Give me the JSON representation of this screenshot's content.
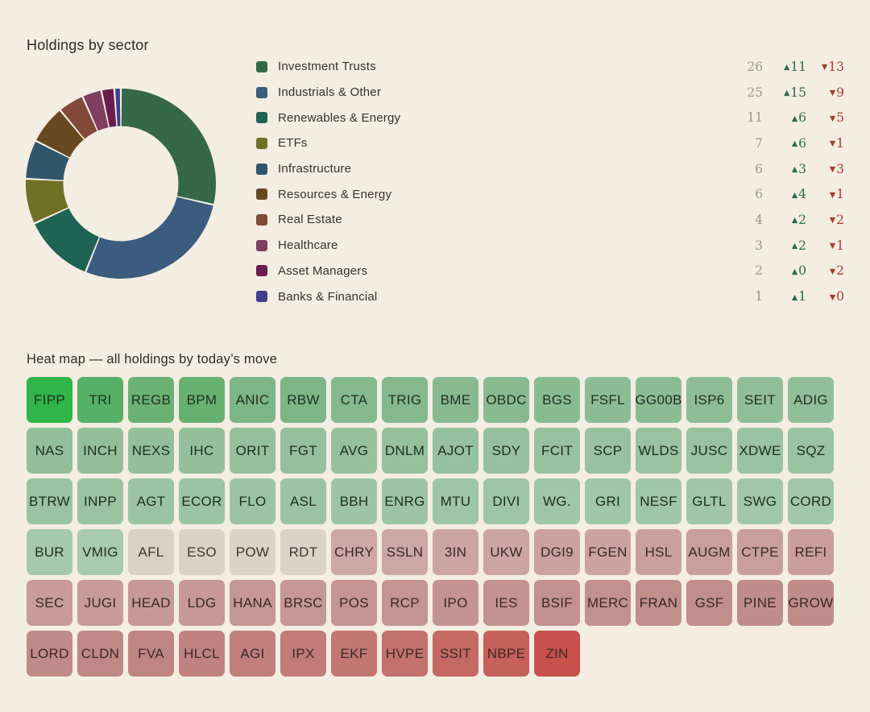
{
  "page": {
    "background": "#f3ede2"
  },
  "icons": {
    "up_triangle": "▲",
    "down_triangle": "▼"
  },
  "colors": {
    "count_grey": "#9c9889",
    "advance_green": "#2e6a4d",
    "decline_red": "#a63d2b",
    "tile_text_on_green": "#20301f",
    "tile_text_on_red": "#3a2827",
    "tile_text_on_neutral": "#3a372f"
  },
  "chart_data": [
    {
      "type": "pie",
      "donut": true,
      "title": "Holdings by sector",
      "legend_position": "right",
      "categories": [
        "Investment Trusts",
        "Industrials & Other",
        "Renewables & Energy",
        "ETFs",
        "Infrastructure",
        "Resources & Energy",
        "Real Estate",
        "Healthcare",
        "Asset Managers",
        "Banks & Financial"
      ],
      "values": [
        26,
        25,
        11,
        7,
        6,
        6,
        4,
        3,
        2,
        1
      ],
      "advancers": [
        11,
        15,
        6,
        6,
        3,
        4,
        2,
        2,
        0,
        1
      ],
      "decliners": [
        13,
        9,
        5,
        1,
        3,
        1,
        2,
        1,
        2,
        0
      ],
      "colors": [
        "#356749",
        "#3b5c7e",
        "#1e6354",
        "#6f7026",
        "#31566c",
        "#674820",
        "#82493a",
        "#7f3f5f",
        "#6b1c4f",
        "#423d8f"
      ]
    },
    {
      "type": "heatmap",
      "title": "Heat map — all holdings by today’s move",
      "rows": [
        [
          {
            "ticker": "FIPP",
            "color": "#2fb54a"
          },
          {
            "ticker": "TRI",
            "color": "#55b167"
          },
          {
            "ticker": "REGB",
            "color": "#69b273"
          },
          {
            "ticker": "BPM",
            "color": "#67b170"
          },
          {
            "ticker": "ANIC",
            "color": "#7db686"
          },
          {
            "ticker": "RBW",
            "color": "#7db686"
          },
          {
            "ticker": "CTA",
            "color": "#84b98d"
          },
          {
            "ticker": "TRIG",
            "color": "#84b98d"
          },
          {
            "ticker": "BME",
            "color": "#87ba8f"
          },
          {
            "ticker": "OBDC",
            "color": "#87ba8f"
          },
          {
            "ticker": "BGS",
            "color": "#89bb91"
          },
          {
            "ticker": "FSFL",
            "color": "#8cbc94"
          },
          {
            "ticker": "GG00B",
            "color": "#8cbc94"
          },
          {
            "ticker": "ISP6",
            "color": "#8dbd95"
          },
          {
            "ticker": "SEIT",
            "color": "#8fbe97"
          },
          {
            "ticker": "ADIG",
            "color": "#90be98"
          }
        ],
        [
          {
            "ticker": "NAS",
            "color": "#92bf9a"
          },
          {
            "ticker": "INCH",
            "color": "#92bf9a"
          },
          {
            "ticker": "NEXS",
            "color": "#93c09b"
          },
          {
            "ticker": "IHC",
            "color": "#93c09b"
          },
          {
            "ticker": "ORIT",
            "color": "#94c09c"
          },
          {
            "ticker": "FGT",
            "color": "#94c09c"
          },
          {
            "ticker": "AVG",
            "color": "#95c19d"
          },
          {
            "ticker": "DNLM",
            "color": "#95c19d"
          },
          {
            "ticker": "AJOT",
            "color": "#96c19e"
          },
          {
            "ticker": "SDY",
            "color": "#96c19e"
          },
          {
            "ticker": "FCIT",
            "color": "#97c29f"
          },
          {
            "ticker": "SCP",
            "color": "#97c29f"
          },
          {
            "ticker": "WLDS",
            "color": "#98c2a0"
          },
          {
            "ticker": "JUSC",
            "color": "#98c2a0"
          },
          {
            "ticker": "XDWE",
            "color": "#99c3a1"
          },
          {
            "ticker": "SQZ",
            "color": "#99c3a1"
          }
        ],
        [
          {
            "ticker": "BTRW",
            "color": "#9ac3a2"
          },
          {
            "ticker": "INPP",
            "color": "#9ac3a2"
          },
          {
            "ticker": "AGT",
            "color": "#9bc4a3"
          },
          {
            "ticker": "ECOR",
            "color": "#9bc4a3"
          },
          {
            "ticker": "FLO",
            "color": "#9cc4a4"
          },
          {
            "ticker": "ASL",
            "color": "#9cc4a4"
          },
          {
            "ticker": "BBH",
            "color": "#9dc5a5"
          },
          {
            "ticker": "ENRG",
            "color": "#9dc5a5"
          },
          {
            "ticker": "MTU",
            "color": "#9ec5a6"
          },
          {
            "ticker": "DIVI",
            "color": "#9ec5a6"
          },
          {
            "ticker": "WG.",
            "color": "#9fc6a7"
          },
          {
            "ticker": "GRI",
            "color": "#9fc6a7"
          },
          {
            "ticker": "NESF",
            "color": "#a0c6a8"
          },
          {
            "ticker": "GLTL",
            "color": "#a0c6a8"
          },
          {
            "ticker": "SWG",
            "color": "#a1c7a9"
          },
          {
            "ticker": "CORD",
            "color": "#a1c7a9"
          }
        ],
        [
          {
            "ticker": "BUR",
            "color": "#a6c9ae"
          },
          {
            "ticker": "VMIG",
            "color": "#a8cab0"
          },
          {
            "ticker": "AFL",
            "color": "#d7d2c5"
          },
          {
            "ticker": "ESO",
            "color": "#d8d3c6"
          },
          {
            "ticker": "POW",
            "color": "#d9d4c7"
          },
          {
            "ticker": "RDT",
            "color": "#dad4c8"
          },
          {
            "ticker": "CHRY",
            "color": "#cda6a6"
          },
          {
            "ticker": "SSLN",
            "color": "#cda6a6"
          },
          {
            "ticker": "3IN",
            "color": "#cca4a3"
          },
          {
            "ticker": "UKW",
            "color": "#cca4a3"
          },
          {
            "ticker": "DGI9",
            "color": "#cba2a1"
          },
          {
            "ticker": "FGEN",
            "color": "#cba2a1"
          },
          {
            "ticker": "HSL",
            "color": "#caa09f"
          },
          {
            "ticker": "AUGM",
            "color": "#c99f9d"
          },
          {
            "ticker": "CTPE",
            "color": "#c99f9d"
          },
          {
            "ticker": "REFI",
            "color": "#c89d9b"
          }
        ],
        [
          {
            "ticker": "SEC",
            "color": "#c79b99"
          },
          {
            "ticker": "JUGI",
            "color": "#c79b99"
          },
          {
            "ticker": "HEAD",
            "color": "#c69997"
          },
          {
            "ticker": "LDG",
            "color": "#c69997"
          },
          {
            "ticker": "HANA",
            "color": "#c59795"
          },
          {
            "ticker": "BRSC",
            "color": "#c59795"
          },
          {
            "ticker": "POS",
            "color": "#c49593"
          },
          {
            "ticker": "RCP",
            "color": "#c49593"
          },
          {
            "ticker": "IPO",
            "color": "#c39391"
          },
          {
            "ticker": "IES",
            "color": "#c39391"
          },
          {
            "ticker": "BSIF",
            "color": "#c29190"
          },
          {
            "ticker": "MERC",
            "color": "#c2908e"
          },
          {
            "ticker": "FRAN",
            "color": "#c18e8c"
          },
          {
            "ticker": "GSF",
            "color": "#c18e8c"
          },
          {
            "ticker": "PINE",
            "color": "#c08c8a"
          },
          {
            "ticker": "GROW",
            "color": "#c08c8a"
          }
        ],
        [
          {
            "ticker": "LORD",
            "color": "#c08a88"
          },
          {
            "ticker": "CLDN",
            "color": "#bf8886"
          },
          {
            "ticker": "FVA",
            "color": "#c08583"
          },
          {
            "ticker": "HLCL",
            "color": "#c08280"
          },
          {
            "ticker": "AGI",
            "color": "#c17f7c"
          },
          {
            "ticker": "IPX",
            "color": "#c17b78"
          },
          {
            "ticker": "EKF",
            "color": "#c27773"
          },
          {
            "ticker": "HVPE",
            "color": "#c3716d"
          },
          {
            "ticker": "SSIT",
            "color": "#c56963"
          },
          {
            "ticker": "NBPE",
            "color": "#c6605a"
          },
          {
            "ticker": "ZIN",
            "color": "#c8514b"
          }
        ]
      ]
    }
  ]
}
